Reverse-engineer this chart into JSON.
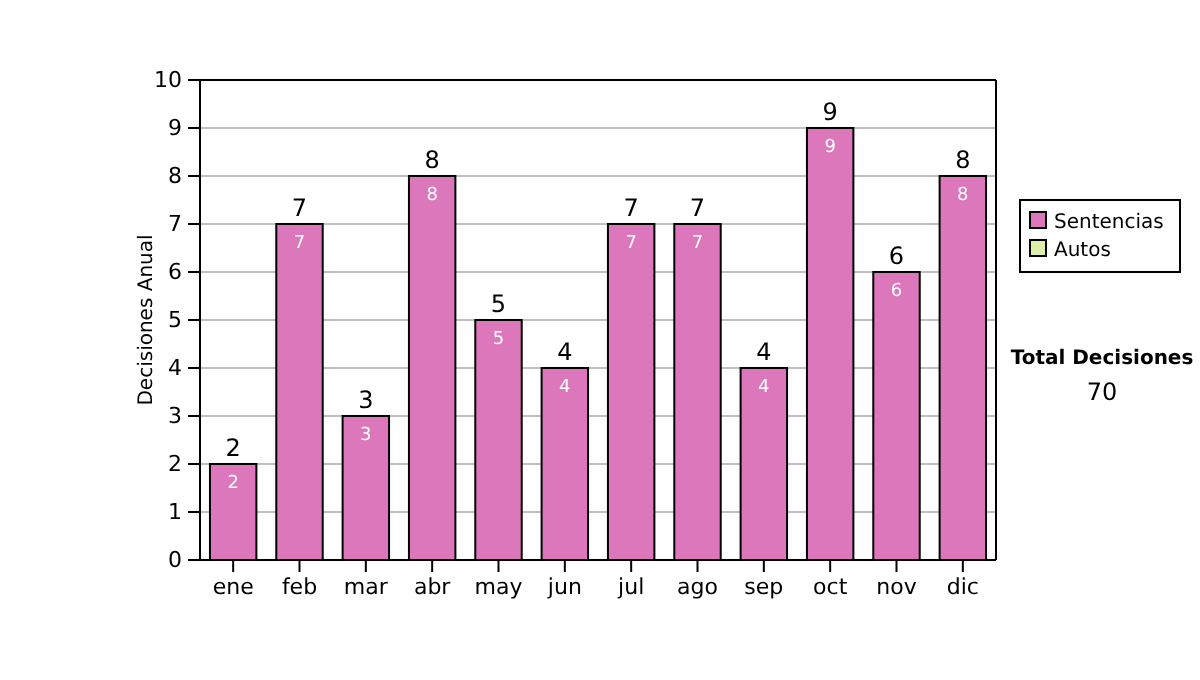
{
  "chart_data": {
    "type": "bar",
    "ylabel": "Decisiones Anual",
    "categories": [
      "ene",
      "feb",
      "mar",
      "abr",
      "may",
      "jun",
      "jul",
      "ago",
      "sep",
      "oct",
      "nov",
      "dic"
    ],
    "series": [
      {
        "name": "Sentencias",
        "color": "#dd77bb",
        "values": [
          2,
          7,
          3,
          8,
          5,
          4,
          7,
          7,
          4,
          9,
          6,
          8
        ],
        "value_labels": [
          "2",
          "7",
          "3",
          "8",
          "5",
          "4",
          "7",
          "7",
          "4",
          "9",
          "6",
          "8"
        ]
      },
      {
        "name": "Autos",
        "color": "#ddeeaa",
        "values": [
          0,
          0,
          0,
          0,
          0,
          0,
          0,
          0,
          0,
          0,
          0,
          0
        ]
      }
    ],
    "stacked": true,
    "totals": [
      "2",
      "7",
      "3",
      "8",
      "5",
      "4",
      "7",
      "7",
      "4",
      "9",
      "6",
      "8"
    ],
    "ylim": [
      0,
      10
    ],
    "yticks": [
      0,
      1,
      2,
      3,
      4,
      5,
      6,
      7,
      8,
      9,
      10
    ],
    "grid": "y",
    "legend": "right",
    "annotations": [
      "Total Decisiones",
      "70"
    ]
  }
}
